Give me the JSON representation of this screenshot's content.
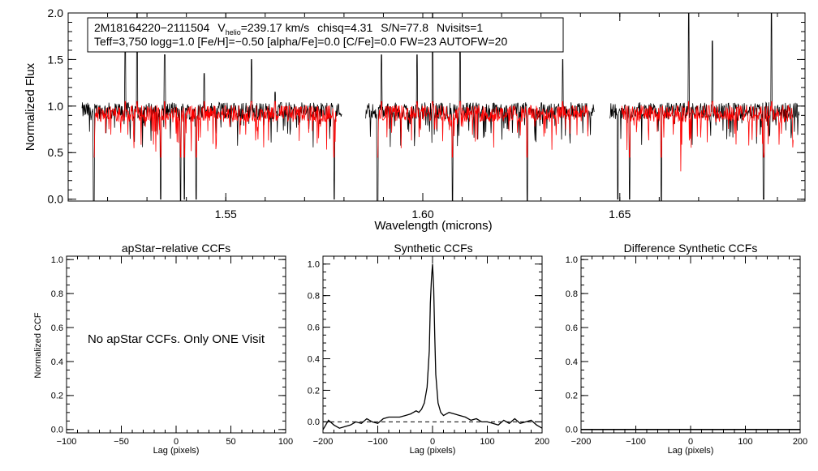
{
  "chart_data": [
    {
      "type": "line",
      "id": "spectrum",
      "xlabel": "Wavelength (microns)",
      "ylabel": "Normalized Flux",
      "xlim": [
        1.51,
        1.697
      ],
      "ylim": [
        -0.02,
        2.0
      ],
      "xticks": [
        1.55,
        1.6,
        1.65
      ],
      "yticks": [
        0.0,
        0.5,
        1.0,
        1.5,
        2.0
      ],
      "chips": [
        [
          1.5135,
          1.5795
        ],
        [
          1.5855,
          1.6435
        ],
        [
          1.6475,
          1.6955
        ]
      ],
      "series": [
        {
          "name": "observed",
          "color": "#000000",
          "baseline": 0.95
        },
        {
          "name": "model",
          "color": "#ff0000",
          "baseline": 0.92
        }
      ],
      "annotation": {
        "star": "2M18164220−2111504",
        "vhelio_prefix": "V",
        "vhelio_sub": "helio",
        "vhelio_value": "=239.17 km/s",
        "chisq": "chisq=4.31",
        "snr": "S/N=77.8",
        "nvisits": "Nvisits=1",
        "params": "Teff=3,750 logg=1.0 [Fe/H]=−0.50 [alpha/Fe]=0.0 [C/Fe]=0.0 FW=23 AUTOFW=20"
      }
    },
    {
      "type": "line",
      "id": "apstar",
      "title": "apStar−relative CCFs",
      "xlabel": "Lag (pixels)",
      "ylabel": "Normalized CCF",
      "xlim": [
        -100,
        100
      ],
      "ylim": [
        -0.02,
        1.02
      ],
      "xticks": [
        -100,
        -50,
        0,
        50,
        100
      ],
      "yticks": [
        0.0,
        0.2,
        0.4,
        0.6,
        0.8,
        1.0
      ],
      "message": "No apStar CCFs.  Only ONE Visit",
      "series": []
    },
    {
      "type": "line",
      "id": "synthetic",
      "title": "Synthetic CCFs",
      "xlabel": "Lag (pixels)",
      "xlim": [
        -200,
        200
      ],
      "ylim": [
        -0.07,
        1.05
      ],
      "xticks": [
        -200,
        -100,
        0,
        100,
        200
      ],
      "yticks": [
        0.0,
        0.2,
        0.4,
        0.6,
        0.8,
        1.0
      ],
      "reference_line": 0.0,
      "series": [
        {
          "name": "ccf",
          "x": [
            -200,
            -190,
            -180,
            -170,
            -160,
            -150,
            -140,
            -130,
            -120,
            -110,
            -100,
            -90,
            -80,
            -70,
            -60,
            -50,
            -40,
            -30,
            -25,
            -20,
            -15,
            -10,
            -6,
            -4,
            -2,
            0,
            2,
            4,
            6,
            10,
            15,
            20,
            30,
            40,
            50,
            60,
            70,
            80,
            90,
            100,
            110,
            120,
            130,
            140,
            150,
            160,
            170,
            180,
            190,
            200
          ],
          "y": [
            -0.05,
            0.01,
            -0.02,
            -0.04,
            -0.03,
            -0.02,
            0.0,
            -0.01,
            0.02,
            0.0,
            -0.01,
            0.02,
            0.03,
            0.03,
            0.03,
            0.04,
            0.05,
            0.07,
            0.06,
            0.08,
            0.12,
            0.22,
            0.45,
            0.75,
            0.9,
            1.0,
            0.85,
            0.55,
            0.3,
            0.12,
            0.06,
            0.04,
            0.06,
            0.05,
            0.04,
            0.03,
            0.01,
            0.02,
            0.0,
            0.0,
            -0.01,
            -0.02,
            0.01,
            -0.01,
            0.02,
            -0.01,
            0.0,
            0.01,
            -0.02,
            -0.04
          ]
        }
      ]
    },
    {
      "type": "line",
      "id": "difference",
      "title": "Difference Synthetic CCFs",
      "xlabel": "Lag (pixels)",
      "xlim": [
        -200,
        200
      ],
      "ylim": [
        -0.02,
        1.02
      ],
      "xticks": [
        -200,
        -100,
        0,
        100,
        200
      ],
      "yticks": [
        0.0,
        0.2,
        0.4,
        0.6,
        0.8,
        1.0
      ],
      "series": [
        {
          "name": "difference",
          "constant": 0.0
        }
      ]
    }
  ]
}
